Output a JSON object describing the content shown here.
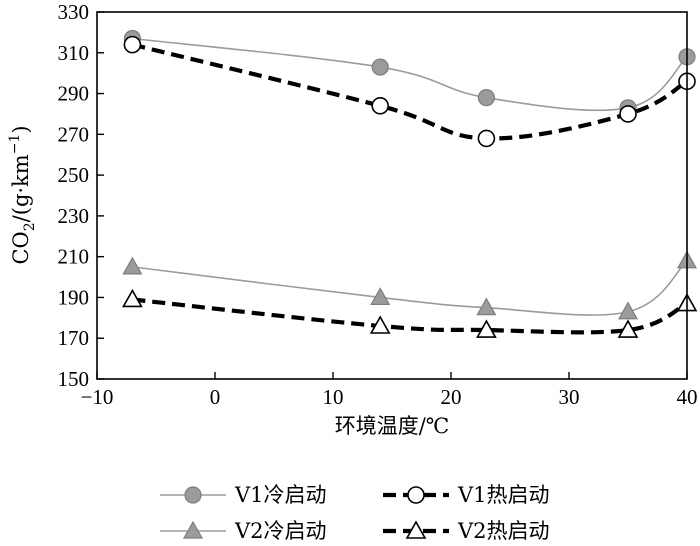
{
  "chart_data": {
    "type": "line",
    "title": "",
    "xlabel": "环境温度/℃",
    "ylabel": "CO2/(g·km⁻¹)",
    "ylabel_parts": {
      "main": "CO",
      "sub": "2",
      "rest": "/(g·km",
      "sup": "−1",
      "close": ")"
    },
    "xlim": [
      -10,
      40
    ],
    "ylim": [
      150,
      330
    ],
    "xticks": [
      -10,
      0,
      10,
      20,
      30,
      40
    ],
    "xtick_labels": [
      "−10",
      "0",
      "10",
      "20",
      "30",
      "40"
    ],
    "yticks": [
      150,
      170,
      190,
      210,
      230,
      250,
      270,
      290,
      310,
      330
    ],
    "grid": false,
    "x": [
      -7,
      14,
      23,
      35,
      40
    ],
    "series": [
      {
        "name": "V1冷启动",
        "values": [
          317,
          303,
          288,
          283,
          308
        ],
        "marker": "filled-circle",
        "line": "solid-thin",
        "color": "#999999"
      },
      {
        "name": "V1热启动",
        "values": [
          314,
          284,
          268,
          280,
          296
        ],
        "marker": "open-circle",
        "line": "dashed-thick",
        "color": "#000000"
      },
      {
        "name": "V2冷启动",
        "values": [
          205,
          190,
          185,
          183,
          208
        ],
        "marker": "filled-triangle",
        "line": "solid-thin",
        "color": "#999999"
      },
      {
        "name": "V2热启动",
        "values": [
          189,
          176,
          174,
          174,
          187
        ],
        "marker": "open-triangle",
        "line": "dashed-thick",
        "color": "#000000"
      }
    ],
    "legend_position": "bottom"
  }
}
